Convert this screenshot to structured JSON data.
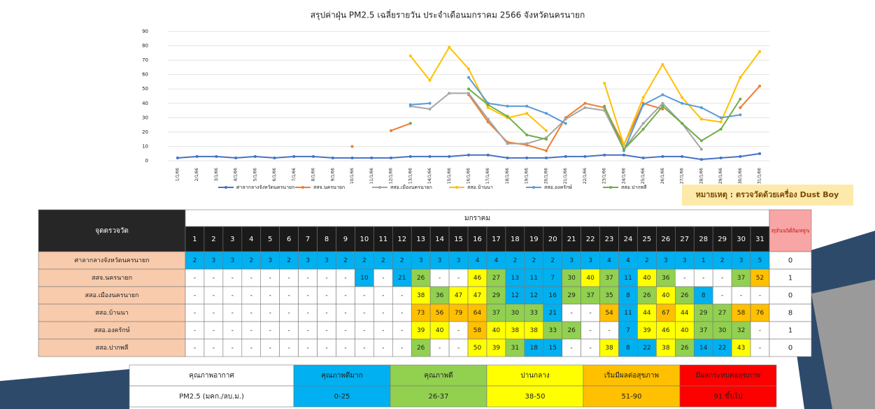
{
  "chart_data": {
    "type": "line",
    "title": "สรุปค่าฝุ่น PM2.5 เฉลี่ยรายวัน ประจำเดือนมกราคม 2566 จังหวัดนครนายก",
    "categories": [
      "1/1/66",
      "2/1/66",
      "3/1/66",
      "4/1/66",
      "5/1/66",
      "6/1/66",
      "7/1/66",
      "8/1/66",
      "9/1/66",
      "10/1/66",
      "11/1/66",
      "12/1/66",
      "13/1/66",
      "14/1/66",
      "15/1/66",
      "16/1/66",
      "17/1/66",
      "18/1/66",
      "19/1/66",
      "20/1/66",
      "21/1/66",
      "22/1/66",
      "23/1/66",
      "24/1/66",
      "25/1/66",
      "26/1/66",
      "27/1/66",
      "28/1/66",
      "29/1/66",
      "30/1/66",
      "31/1/66"
    ],
    "ylim": [
      0,
      90
    ],
    "yticks": [
      0,
      10,
      20,
      30,
      40,
      50,
      60,
      70,
      80,
      90
    ],
    "grid": true,
    "series": [
      {
        "name": "ศาลากลางจังหวัดนครนายก",
        "color": "#4472c4",
        "exceed_days": 0,
        "values": [
          2,
          3,
          3,
          2,
          3,
          2,
          3,
          3,
          2,
          2,
          2,
          2,
          3,
          3,
          3,
          4,
          4,
          2,
          2,
          2,
          3,
          3,
          4,
          4,
          2,
          3,
          3,
          1,
          2,
          3,
          5
        ]
      },
      {
        "name": "สสจ.นครนายก",
        "color": "#ed7d31",
        "exceed_days": 1,
        "values": [
          null,
          null,
          null,
          null,
          null,
          null,
          null,
          null,
          null,
          10,
          null,
          21,
          26,
          null,
          null,
          46,
          27,
          13,
          11,
          7,
          30,
          40,
          37,
          11,
          40,
          36,
          null,
          null,
          null,
          37,
          52
        ]
      },
      {
        "name": "สสอ.เมืองนครนายก",
        "color": "#a5a5a5",
        "exceed_days": 0,
        "values": [
          null,
          null,
          null,
          null,
          null,
          null,
          null,
          null,
          null,
          null,
          null,
          null,
          38,
          36,
          47,
          47,
          29,
          12,
          12,
          16,
          29,
          37,
          35,
          8,
          26,
          40,
          26,
          8,
          null,
          null,
          null
        ]
      },
      {
        "name": "สสอ.บ้านนา",
        "color": "#ffc000",
        "exceed_days": 8,
        "values": [
          null,
          null,
          null,
          null,
          null,
          null,
          null,
          null,
          null,
          null,
          null,
          null,
          73,
          56,
          79,
          64,
          37,
          30,
          33,
          21,
          null,
          null,
          54,
          11,
          44,
          67,
          44,
          29,
          27,
          58,
          76
        ]
      },
      {
        "name": "สสอ.องครักษ์",
        "color": "#5b9bd5",
        "exceed_days": 1,
        "values": [
          null,
          null,
          null,
          null,
          null,
          null,
          null,
          null,
          null,
          null,
          null,
          null,
          39,
          40,
          null,
          58,
          40,
          38,
          38,
          33,
          26,
          null,
          null,
          7,
          39,
          46,
          40,
          37,
          30,
          32,
          null
        ]
      },
      {
        "name": "สสอ.ปากพลี",
        "color": "#70ad47",
        "exceed_days": 0,
        "values": [
          null,
          null,
          null,
          null,
          null,
          null,
          null,
          null,
          null,
          null,
          null,
          null,
          26,
          null,
          null,
          50,
          39,
          31,
          18,
          15,
          null,
          null,
          38,
          8,
          22,
          38,
          26,
          14,
          22,
          43,
          null
        ]
      }
    ],
    "legend_position": "bottom",
    "note": "หมายเหตุ : ตรวจวัดด้วยเครื่อง Dust Boy"
  },
  "table": {
    "station_header": "จุดตรวจวัด",
    "month": "มกราคม",
    "days": [
      1,
      2,
      3,
      4,
      5,
      6,
      7,
      8,
      9,
      10,
      11,
      12,
      13,
      14,
      15,
      16,
      17,
      18,
      19,
      20,
      21,
      22,
      23,
      24,
      25,
      26,
      27,
      28,
      29,
      30,
      31
    ],
    "exceed_header": "สรุปจำนวนวันที่เกินมาตรฐาน",
    "no_data_label": "-"
  },
  "quality": {
    "header": "คุณภาพอากาศ",
    "unit": "PM2.5 (มคก./ลบ.ม.)",
    "levels": [
      {
        "name": "คุณภาพดีมาก",
        "range": "0-25",
        "max": 25,
        "color": "#00b0f0"
      },
      {
        "name": "คุณภาพดี",
        "range": "26-37",
        "max": 37,
        "color": "#92d050"
      },
      {
        "name": "ปานกลาง",
        "range": "38-50",
        "max": 50,
        "color": "#ffff00"
      },
      {
        "name": "เริ่มมีผลต่อสุขภาพ",
        "range": "51-90",
        "max": 90,
        "color": "#ffc000"
      },
      {
        "name": "มีผลกระทบต่อสุขภาพ",
        "range": "91 ขึ้นไป",
        "max": null,
        "color": "#ff0000"
      }
    ]
  }
}
